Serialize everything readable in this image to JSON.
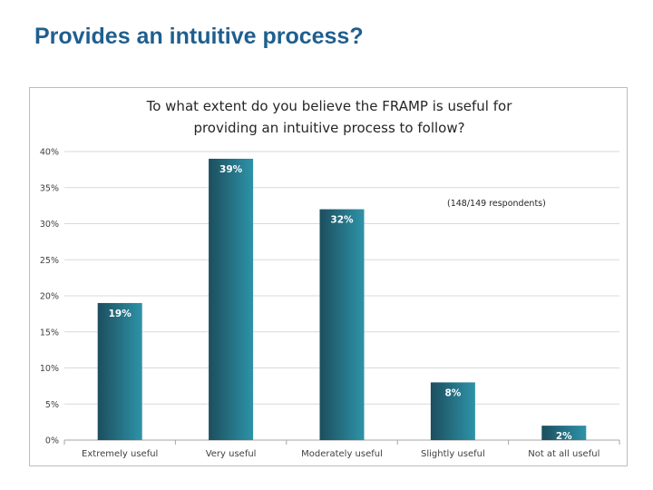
{
  "slide": {
    "title": "Provides an intuitive process?"
  },
  "chart_data": {
    "type": "bar",
    "title_lines": [
      "To what extent do you believe the FRAMP is useful for",
      "providing an intuitive process to follow?"
    ],
    "annotation": "(148/149 respondents)",
    "categories": [
      "Extremely useful",
      "Very useful",
      "Moderately useful",
      "Slightly useful",
      "Not at all useful"
    ],
    "values": [
      19,
      39,
      32,
      8,
      2
    ],
    "value_labels": [
      "19%",
      "39%",
      "32%",
      "8%",
      "2%"
    ],
    "ylim": [
      0,
      40
    ],
    "yticks": [
      0,
      5,
      10,
      15,
      20,
      25,
      30,
      35,
      40
    ],
    "ytick_labels": [
      "0%",
      "5%",
      "10%",
      "15%",
      "20%",
      "25%",
      "30%",
      "35%",
      "40%"
    ],
    "grid": true,
    "bar_color_dark": "#1c4e5e",
    "bar_color_light": "#2e93a8"
  }
}
